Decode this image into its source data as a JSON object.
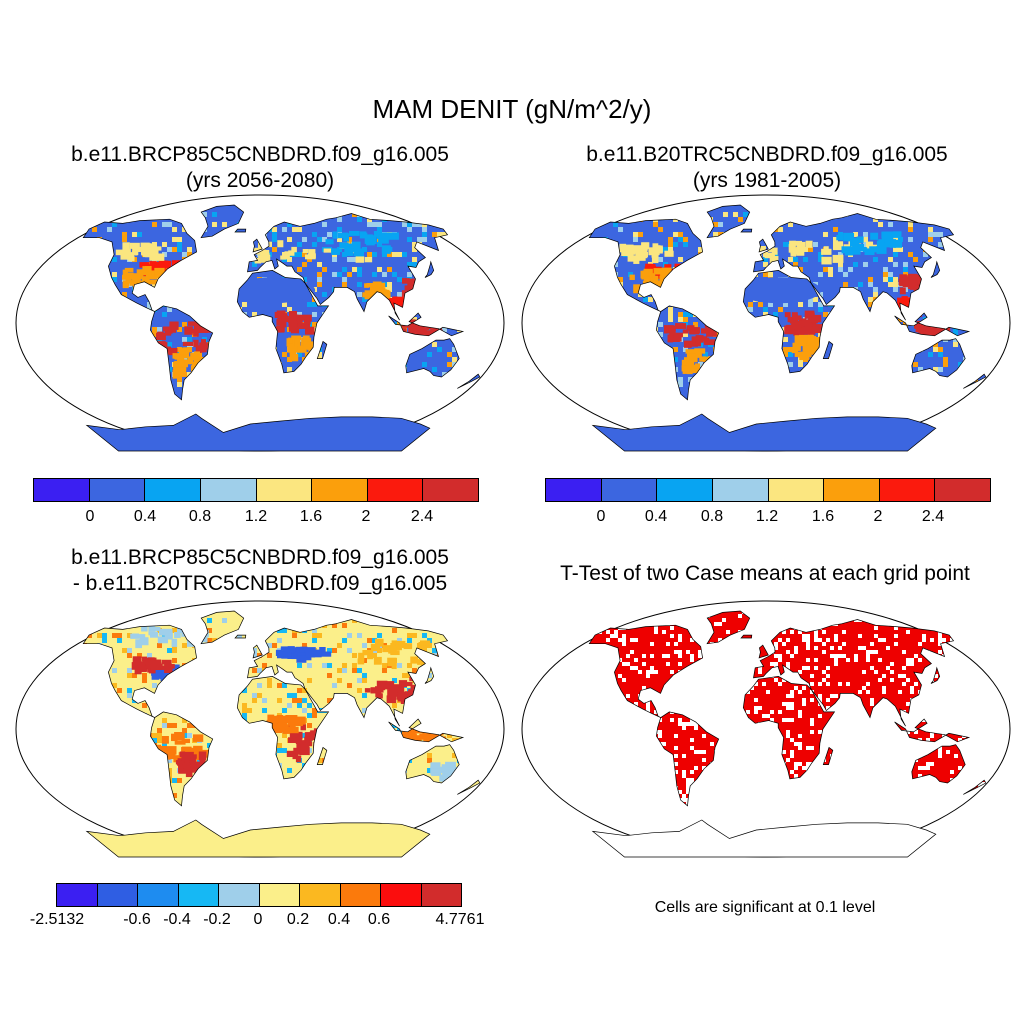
{
  "title": "MAM DENIT (gN/m^2/y)",
  "panels": [
    {
      "title_line1": "b.e11.BRCP85C5CNBDRD.f09_g16.005",
      "title_line2": "(yrs 2056-2080)",
      "colorbar": {
        "colors": [
          "#3b1ff2",
          "#3c66e0",
          "#08a4f2",
          "#9fcfea",
          "#fbe680",
          "#fb9f0c",
          "#fb1a0d",
          "#d22c2c"
        ],
        "tick_labels": [
          "0",
          "0.4",
          "0.8",
          "1.2",
          "1.6",
          "2",
          "2.4"
        ]
      }
    },
    {
      "title_line1": "b.e11.B20TRC5CNBDRD.f09_g16.005",
      "title_line2": "(yrs 1981-2005)",
      "colorbar": {
        "colors": [
          "#3b1ff2",
          "#3c66e0",
          "#08a4f2",
          "#9fcfea",
          "#fbe680",
          "#fb9f0c",
          "#fb1a0d",
          "#d22c2c"
        ],
        "tick_labels": [
          "0",
          "0.4",
          "0.8",
          "1.2",
          "1.6",
          "2",
          "2.4"
        ]
      }
    },
    {
      "title_line1": "b.e11.BRCP85C5CNBDRD.f09_g16.005",
      "title_line2": "- b.e11.B20TRC5CNBDRD.f09_g16.005",
      "colorbar": {
        "colors": [
          "#3b1ff2",
          "#2f5ee3",
          "#1e8cf0",
          "#16b8f4",
          "#9fcfea",
          "#fbef8a",
          "#fbb820",
          "#fb7a0c",
          "#fb0d0d",
          "#d22c2c"
        ],
        "tick_labels": [
          "-2.5132",
          "-0.6",
          "-0.4",
          "-0.2",
          "0",
          "0.2",
          "0.4",
          "0.6",
          "4.7761"
        ]
      }
    },
    {
      "title_line1": "T-Test of two Case means at each grid point",
      "note": "Cells are significant at 0.1 level",
      "significance_color": "#ee0000"
    }
  ]
}
